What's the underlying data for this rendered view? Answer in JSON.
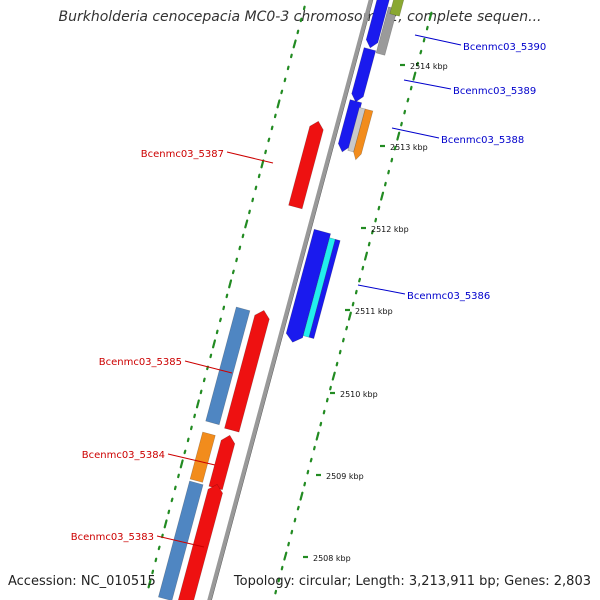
{
  "title": "Burkholderia cenocepacia MC0-3 chromosome 2, complete sequen...",
  "accession_text": "Accession: NC_010515",
  "summary_text": "Topology: circular; Length: 3,213,911 bp; Genes: 2,803",
  "colors": {
    "backbone": "#999999",
    "forward_label": "#0000cc",
    "reverse_label": "#cc0000",
    "tick": "#228b22",
    "blue": "#1a1aee",
    "steelblue": "#4f86c2",
    "red": "#ee1111",
    "orange": "#f28c1c",
    "cyan": "#22eeee",
    "gray": "#9a9a9a",
    "olive": "#8aa832"
  },
  "scale_labels": [
    {
      "text": "2508 kbp",
      "kbp": 2508
    },
    {
      "text": "2509 kbp",
      "kbp": 2509
    },
    {
      "text": "2510 kbp",
      "kbp": 2510
    },
    {
      "text": "2511 kbp",
      "kbp": 2511
    },
    {
      "text": "2512 kbp",
      "kbp": 2512
    },
    {
      "text": "2513 kbp",
      "kbp": 2513
    },
    {
      "text": "2514 kbp",
      "kbp": 2514
    }
  ],
  "gene_labels": [
    {
      "text": "Bcenmc03_5390",
      "strand": "forward"
    },
    {
      "text": "Bcenmc03_5389",
      "strand": "forward"
    },
    {
      "text": "Bcenmc03_5388",
      "strand": "forward"
    },
    {
      "text": "Bcenmc03_5387",
      "strand": "reverse"
    },
    {
      "text": "Bcenmc03_5386",
      "strand": "forward"
    },
    {
      "text": "Bcenmc03_5385",
      "strand": "reverse"
    },
    {
      "text": "Bcenmc03_5384",
      "strand": "reverse"
    },
    {
      "text": "Bcenmc03_5383",
      "strand": "reverse"
    }
  ]
}
